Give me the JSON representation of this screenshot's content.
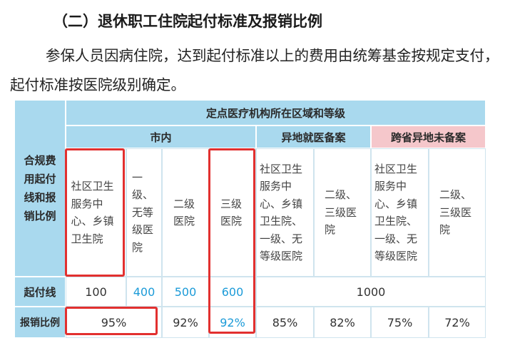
{
  "heading": "（二）退休职工住院起付标准及报销比例",
  "paragraph": "参保人员因病住院，达到起付标准以上的费用由统筹基金按规定支付，起付标准按医院级别确定。",
  "table": {
    "side_header": "合规费用起付线和报销比例",
    "top_header": "定点医疗机构所在区域和等级",
    "group_city": "市内",
    "group_remote": "异地就医备案",
    "group_cross": "跨省异地未备案",
    "levels": [
      "社区卫生服务中心、乡镇卫生院",
      "一级、无等级医院",
      "二级医院",
      "三级医院",
      "社区卫生服务中心、乡镇卫生院、一级、无等级医院",
      "二级、三级医院",
      "社区卫生服务中心、乡镇卫生院、一级、无等级医院",
      "二级、三级医院"
    ],
    "threshold_label": "起付线",
    "thresholds": [
      "100",
      "400",
      "500",
      "600",
      "1000"
    ],
    "ratio_label": "报销比例",
    "ratios": [
      "95%",
      "92%",
      "92%",
      "85%",
      "82%",
      "75%",
      "72%"
    ]
  },
  "colors": {
    "header_blue": "#a9d9ee",
    "header_pink": "#f5c7cb",
    "highlight_red": "#e2302f",
    "value_blue": "#1c9bd8"
  }
}
